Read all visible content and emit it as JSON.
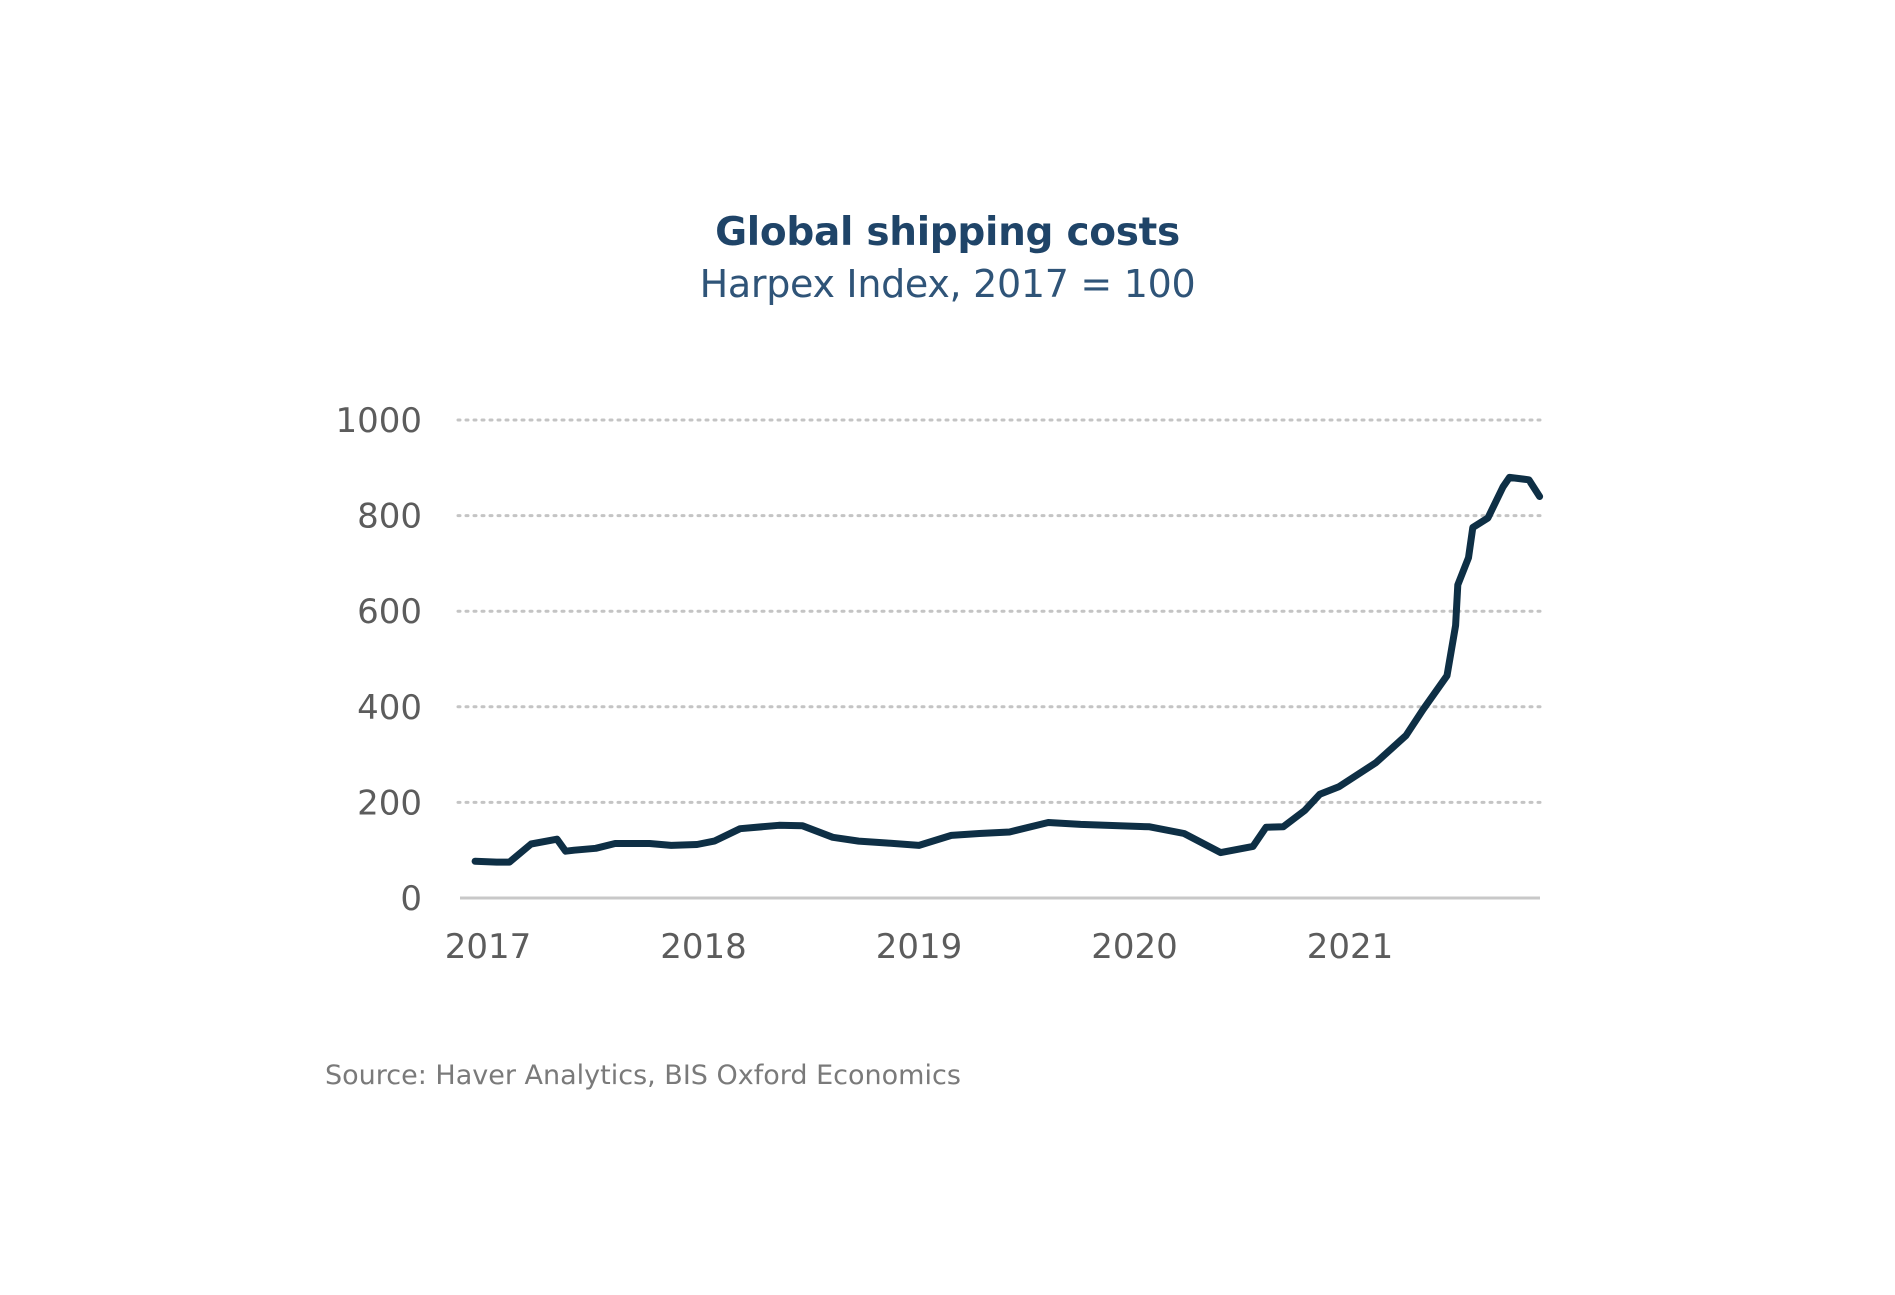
{
  "chart_data": {
    "type": "line",
    "title": "Global shipping costs",
    "subtitle": "Harpex Index, 2017 = 100",
    "source": "Source: Haver Analytics, BIS Oxford Economics",
    "xlabel": "",
    "ylabel": "",
    "ylim": [
      0,
      1000
    ],
    "xlim": [
      2017,
      2021.93
    ],
    "grid": true,
    "yticks": [
      0,
      200,
      400,
      600,
      800,
      1000
    ],
    "ytick_labels": [
      "0",
      "200",
      "400",
      "600",
      "800",
      "1000"
    ],
    "xticks": [
      2017,
      2018,
      2019,
      2020,
      2021
    ],
    "xtick_labels": [
      "2017",
      "2018",
      "2019",
      "2020",
      "2021"
    ],
    "line_color": "#0e2f45",
    "series": [
      {
        "name": "Harpex Index",
        "x": [
          2016.94,
          2017.04,
          2017.1,
          2017.2,
          2017.32,
          2017.36,
          2017.4,
          2017.5,
          2017.59,
          2017.75,
          2017.85,
          2017.97,
          2018.05,
          2018.17,
          2018.35,
          2018.46,
          2018.6,
          2018.72,
          2018.85,
          2019.0,
          2019.15,
          2019.28,
          2019.42,
          2019.6,
          2019.75,
          2020.07,
          2020.23,
          2020.4,
          2020.55,
          2020.61,
          2020.69,
          2020.79,
          2020.86,
          2020.95,
          2021.12,
          2021.26,
          2021.34,
          2021.45,
          2021.49,
          2021.5,
          2021.55,
          2021.57,
          2021.64,
          2021.71,
          2021.74,
          2021.83,
          2021.88
        ],
        "values": [
          77,
          75,
          75,
          113,
          123,
          98,
          100,
          104,
          114,
          114,
          110,
          112,
          119,
          145,
          152,
          151,
          127,
          119,
          115,
          110,
          131,
          135,
          138,
          158,
          154,
          149,
          135,
          95,
          108,
          148,
          149,
          183,
          217,
          233,
          283,
          340,
          395,
          465,
          570,
          655,
          712,
          775,
          795,
          860,
          880,
          875,
          840
        ]
      }
    ]
  }
}
